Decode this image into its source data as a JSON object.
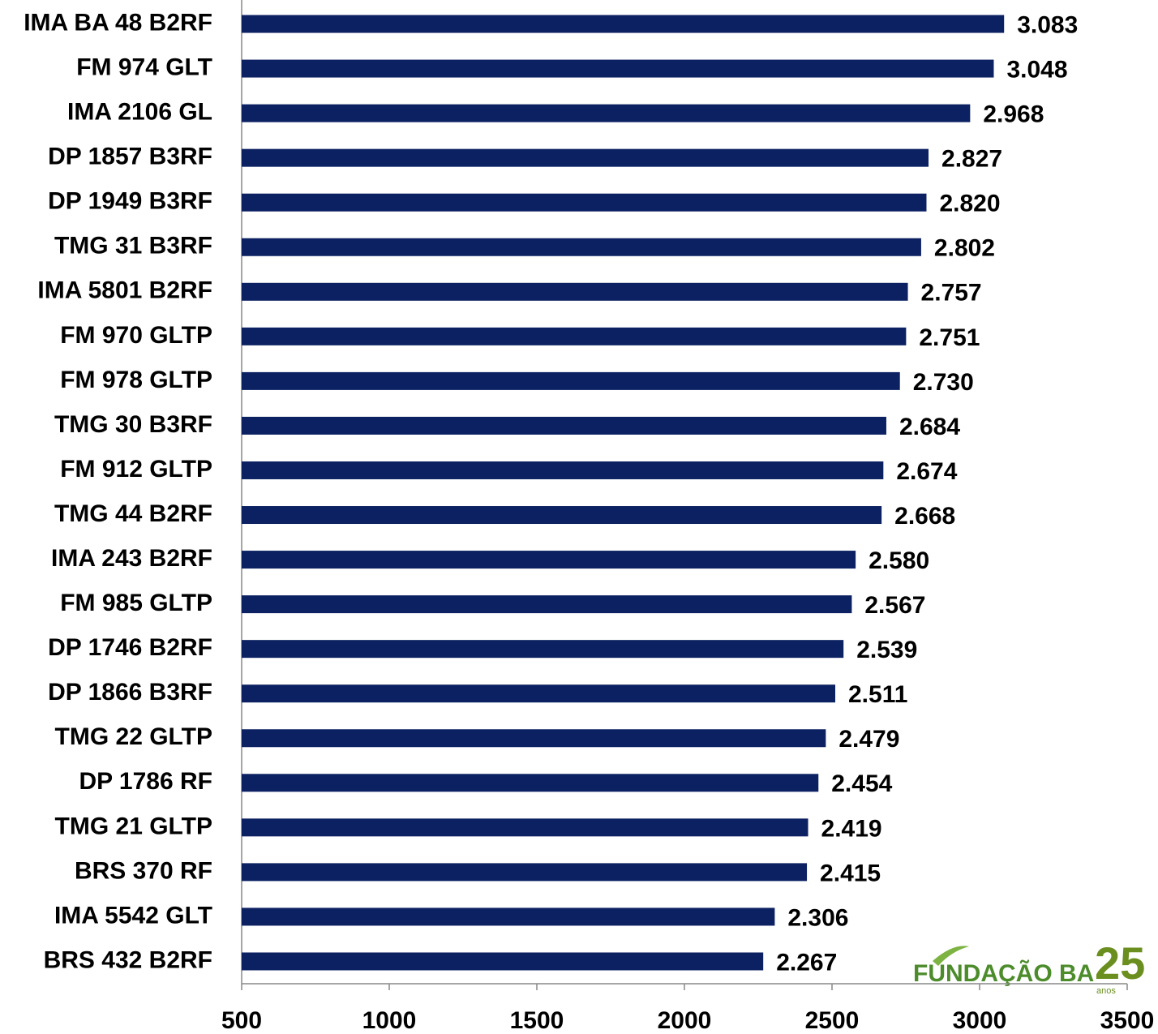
{
  "chart_data": {
    "type": "bar",
    "orientation": "horizontal",
    "categories": [
      "IMA BA 48 B2RF",
      "FM 974 GLT",
      "IMA 2106 GL",
      "DP 1857 B3RF",
      "DP 1949 B3RF",
      "TMG 31 B3RF",
      "IMA 5801 B2RF",
      "FM 970 GLTP",
      "FM 978 GLTP",
      "TMG 30 B3RF",
      "FM 912 GLTP",
      "TMG 44 B2RF",
      "IMA 243 B2RF",
      "FM 985 GLTP",
      "DP 1746 B2RF",
      "DP 1866 B3RF",
      "TMG 22 GLTP",
      "DP 1786 RF",
      "TMG 21 GLTP",
      "BRS 370 RF",
      "IMA 5542 GLT",
      "BRS 432 B2RF"
    ],
    "values": [
      3083,
      3048,
      2968,
      2827,
      2820,
      2802,
      2757,
      2751,
      2730,
      2684,
      2674,
      2668,
      2580,
      2567,
      2539,
      2511,
      2479,
      2454,
      2419,
      2415,
      2306,
      2267
    ],
    "value_labels": [
      "3.083",
      "3.048",
      "2.968",
      "2.827",
      "2.820",
      "2.802",
      "2.757",
      "2.751",
      "2.730",
      "2.684",
      "2.674",
      "2.668",
      "2.580",
      "2.567",
      "2.539",
      "2.511",
      "2.479",
      "2.454",
      "2.419",
      "2.415",
      "2.306",
      "2.267"
    ],
    "color": "#0c2162",
    "xlim": [
      500,
      3500
    ],
    "xticks": [
      500,
      1000,
      1500,
      2000,
      2500,
      3000,
      3500
    ],
    "grid": false
  },
  "logo": {
    "name": "FUNDAÇÃO BA",
    "years": "25",
    "sub": "anos"
  }
}
